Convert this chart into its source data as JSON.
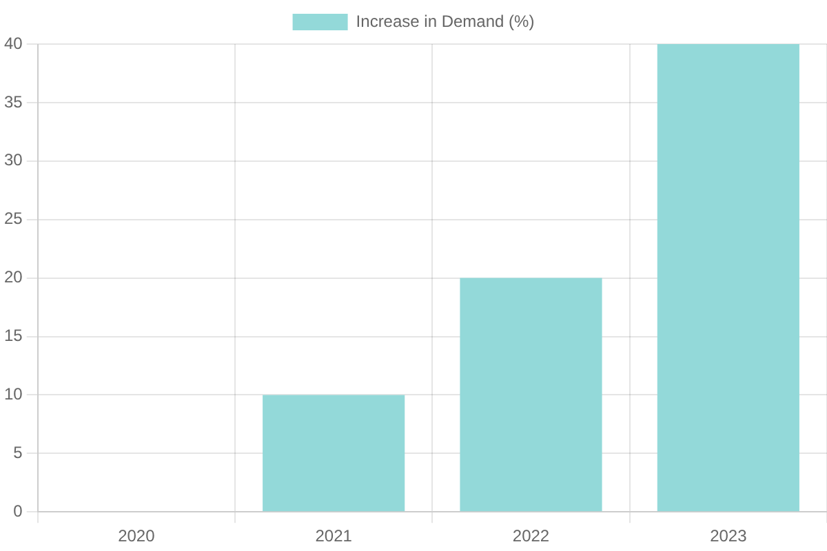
{
  "chart_data": {
    "type": "bar",
    "categories": [
      "2020",
      "2021",
      "2022",
      "2023"
    ],
    "series": [
      {
        "name": "Increase in Demand (%)",
        "color": "#93d9d9",
        "values": [
          0,
          10,
          20,
          40
        ]
      }
    ],
    "ylim": [
      0,
      40
    ],
    "yticks": [
      0,
      5,
      10,
      15,
      20,
      25,
      30,
      35,
      40
    ],
    "grid": true,
    "legend": "top"
  }
}
